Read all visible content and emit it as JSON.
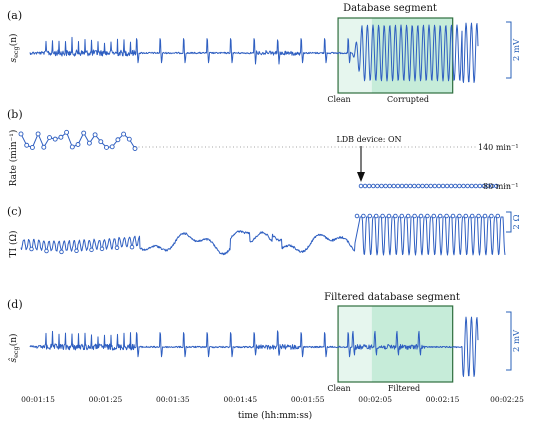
{
  "chart_data": {
    "type": "line",
    "x_axis": {
      "label": "time (hh:mm:ss)",
      "ticks": [
        "00:01:15",
        "00:01:25",
        "00:01:35",
        "00:01:45",
        "00:01:55",
        "00:02:05",
        "00:02:15",
        "00:02:25"
      ],
      "range_s": [
        75,
        145
      ]
    },
    "panels": [
      {
        "id": "a",
        "panel_label": "(a)",
        "ylabel_base": "s",
        "ylabel_sub": "ecg",
        "ylabel_arg": "(n)",
        "scale_bar_label": "2 mV",
        "segment_box": {
          "title": "Database segment",
          "sub_labels": [
            "Clean",
            "Corrupted"
          ],
          "t_start_s": 119.5,
          "t_end_s": 136.5,
          "clean_end_s": 124.5
        }
      },
      {
        "id": "b",
        "panel_label": "(b)",
        "ylabel": "Rate (min⁻¹)",
        "reference_lines": [
          {
            "value": 140,
            "label": "140 min⁻¹"
          },
          {
            "value": 80,
            "label": "80 min⁻¹"
          }
        ],
        "annotation": "LDB device: ON",
        "annotation_time_s": 123.5,
        "device_rate_min": 80
      },
      {
        "id": "c",
        "panel_label": "(c)",
        "ylabel": "TI (Ω)",
        "scale_bar_label": "2 Ω"
      },
      {
        "id": "d",
        "panel_label": "(d)",
        "ylabel_base": "ŝ",
        "ylabel_sub": "ecg",
        "ylabel_arg": "(n)",
        "scale_bar_label": "2 mV",
        "segment_box": {
          "title": "Filtered database segment",
          "sub_labels": [
            "Clean",
            "Filtered"
          ],
          "t_start_s": 119.5,
          "t_end_s": 136.5,
          "clean_end_s": 124.5
        }
      }
    ],
    "colors": {
      "trace": "#2f5fc1",
      "box_border": "#2e6e3e",
      "box_fill_clean": "#e6f6ee",
      "box_fill_corrupted": "#c6ecd9"
    }
  }
}
